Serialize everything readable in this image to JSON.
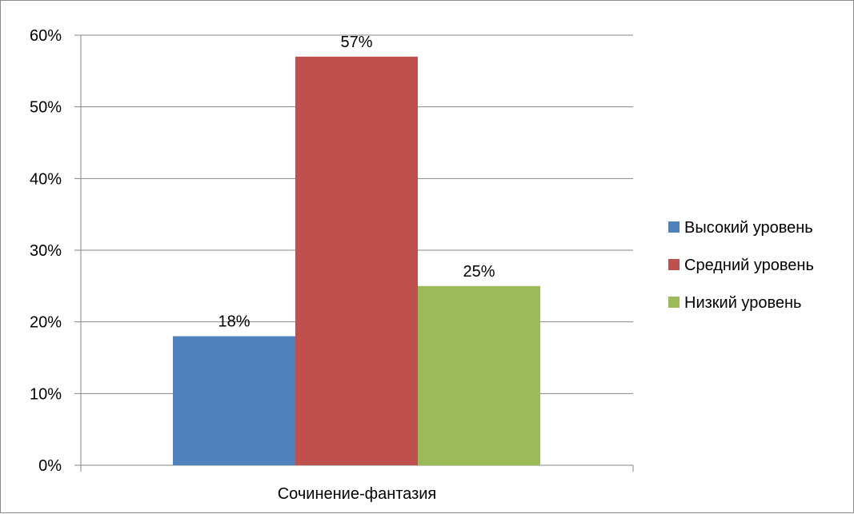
{
  "chart_data": {
    "type": "bar",
    "categories": [
      "Сочинение-фантазия"
    ],
    "series": [
      {
        "name": "Высокий уровень",
        "values": [
          0.18
        ],
        "color": "#4f81bd"
      },
      {
        "name": "Средний уровень",
        "values": [
          0.57
        ],
        "color": "#c0504d"
      },
      {
        "name": "Низкий уровень",
        "values": [
          0.25
        ],
        "color": "#9bbb59"
      }
    ],
    "data_labels": [
      "18%",
      "57%",
      "25%"
    ],
    "yticks": [
      "0%",
      "10%",
      "20%",
      "30%",
      "40%",
      "50%",
      "60%"
    ],
    "ylim": [
      0,
      0.6
    ],
    "grid": true,
    "legend_position": "right",
    "title": "",
    "xlabel": "",
    "ylabel": ""
  }
}
